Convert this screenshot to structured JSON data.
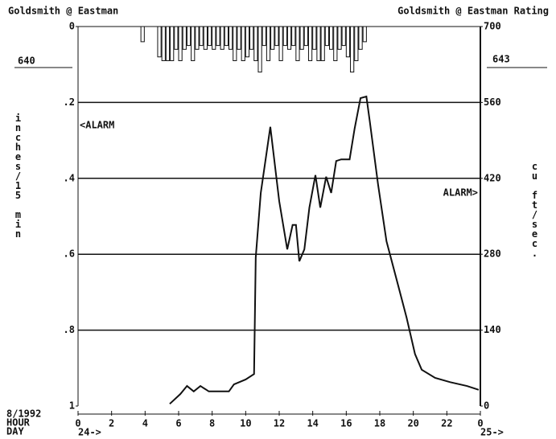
{
  "chart_data": {
    "type": "line",
    "title": "Goldsmith @ Eastman",
    "title_right": "Goldsmith @ Eastman Rating",
    "ylabel": "inches/15 min",
    "y2label": "cu ft/sec.",
    "annotations": [
      "640",
      "643",
      "<ALARM",
      "ALARM>"
    ],
    "footer": [
      "8/1992",
      "HOUR",
      "DAY"
    ],
    "day_labels": [
      "24->",
      "25->"
    ],
    "xlim": [
      0,
      24
    ],
    "xticks": [
      0,
      2,
      4,
      6,
      8,
      10,
      12,
      14,
      16,
      18,
      20,
      22,
      {
        "value": 24,
        "label": "0"
      }
    ],
    "ylim": [
      0,
      1
    ],
    "y_inverted": true,
    "yticks": [
      0,
      {
        "value": 0.2,
        "label": ".2"
      },
      {
        "value": 0.4,
        "label": ".4"
      },
      {
        "value": 0.6,
        "label": ".6"
      },
      {
        "value": 0.8,
        "label": ".8"
      },
      1
    ],
    "y2lim": [
      0,
      700
    ],
    "y2ticks": [
      0,
      140,
      280,
      420,
      560,
      700
    ],
    "grid": true,
    "series": [
      {
        "type": "bar",
        "color": "#111",
        "x": [
          3.75,
          4.75,
          5.0,
          5.25,
          5.5,
          5.75,
          6.0,
          6.25,
          6.5,
          6.75,
          7.0,
          7.25,
          7.5,
          7.75,
          8.0,
          8.25,
          8.5,
          8.75,
          9.0,
          9.25,
          9.5,
          9.75,
          10.0,
          10.25,
          10.5,
          10.75,
          11.0,
          11.25,
          11.5,
          11.75,
          12.0,
          12.25,
          12.5,
          12.75,
          13.0,
          13.25,
          13.5,
          13.75,
          14.0,
          14.25,
          14.5,
          14.75,
          15.0,
          15.25,
          15.5,
          15.75,
          16.0,
          16.25,
          16.5,
          16.75,
          17.0
        ],
        "values": [
          0.04,
          0.08,
          0.09,
          0.09,
          0.09,
          0.06,
          0.09,
          0.06,
          0.05,
          0.09,
          0.06,
          0.05,
          0.06,
          0.05,
          0.06,
          0.05,
          0.06,
          0.05,
          0.06,
          0.09,
          0.06,
          0.09,
          0.08,
          0.06,
          0.09,
          0.12,
          0.05,
          0.09,
          0.06,
          0.05,
          0.09,
          0.05,
          0.06,
          0.05,
          0.09,
          0.06,
          0.05,
          0.09,
          0.06,
          0.09,
          0.09,
          0.05,
          0.06,
          0.09,
          0.06,
          0.05,
          0.08,
          0.12,
          0.09,
          0.06,
          0.04
        ]
      },
      {
        "type": "line",
        "axis": "y2",
        "color": "#111",
        "x": [
          5.47,
          6.1,
          6.5,
          6.9,
          7.3,
          7.8,
          8.5,
          9.0,
          9.3,
          10.0,
          10.5,
          10.6,
          10.9,
          11.47,
          12.0,
          12.48,
          12.8,
          13.0,
          13.2,
          13.5,
          13.8,
          14.16,
          14.45,
          14.8,
          15.1,
          15.4,
          15.7,
          16.2,
          16.5,
          16.85,
          17.2,
          17.4,
          17.9,
          18.4,
          19.1,
          19.6,
          20.1,
          20.5,
          21.3,
          22.2,
          23.2,
          23.9
        ],
        "values": [
          4,
          22,
          37,
          27,
          37,
          27,
          27,
          27,
          40,
          49,
          59,
          274,
          393,
          515,
          378,
          289,
          334,
          334,
          267,
          289,
          366,
          426,
          366,
          423,
          393,
          452,
          455,
          455,
          512,
          568,
          571,
          526,
          408,
          304,
          222,
          163,
          96,
          67,
          52,
          44,
          37,
          30
        ]
      }
    ]
  }
}
